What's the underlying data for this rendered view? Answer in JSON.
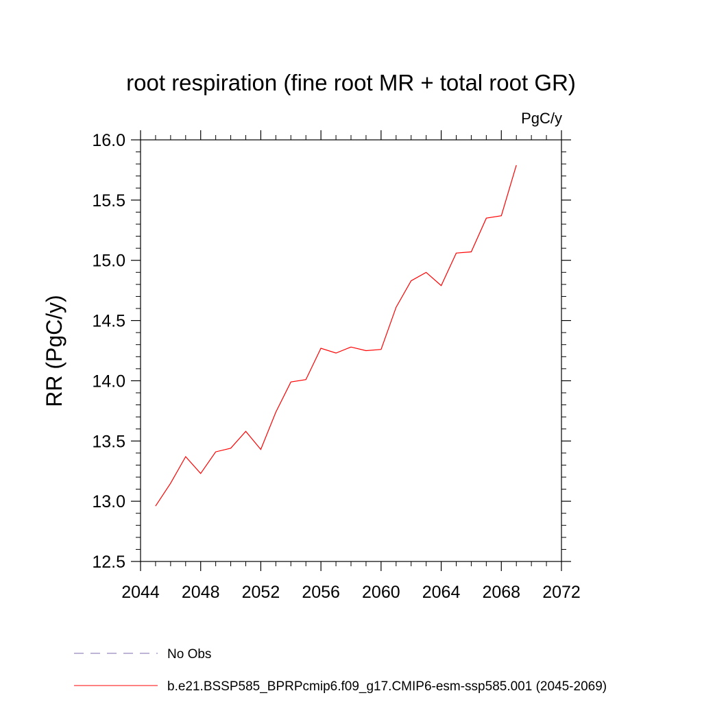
{
  "chart_data": {
    "type": "line",
    "title": "root respiration (fine root MR + total root GR)",
    "units_label": "PgC/y",
    "ylabel": "RR  (PgC/y)",
    "xlabel": "",
    "xlim": [
      2044,
      2072
    ],
    "ylim": [
      12.5,
      16.0
    ],
    "x_ticks": [
      2044,
      2048,
      2052,
      2056,
      2060,
      2064,
      2068,
      2072
    ],
    "x_tick_labels": [
      "2044",
      "2048",
      "2052",
      "2056",
      "2060",
      "2064",
      "2068",
      "2072"
    ],
    "y_ticks": [
      12.5,
      13.0,
      13.5,
      14.0,
      14.5,
      15.0,
      15.5,
      16.0
    ],
    "y_tick_labels": [
      "12.5",
      "13.0",
      "13.5",
      "14.0",
      "14.5",
      "15.0",
      "15.5",
      "16.0"
    ],
    "grid": false,
    "legend_position": "bottom",
    "series": [
      {
        "name": "b.e21.BSSP585_BPRPcmip6.f09_g17.CMIP6-esm-ssp585.001 (2045-2069)",
        "color": "#ff0000",
        "style": "solid",
        "x": [
          2045,
          2046,
          2047,
          2048,
          2049,
          2050,
          2051,
          2052,
          2053,
          2054,
          2055,
          2056,
          2057,
          2058,
          2059,
          2060,
          2061,
          2062,
          2063,
          2064,
          2065,
          2066,
          2067,
          2068,
          2069
        ],
        "y": [
          12.96,
          13.15,
          13.37,
          13.23,
          13.41,
          13.44,
          13.58,
          13.43,
          13.74,
          13.99,
          14.01,
          14.27,
          14.23,
          14.28,
          14.25,
          14.26,
          14.61,
          14.83,
          14.9,
          14.79,
          15.06,
          15.07,
          15.35,
          15.37,
          15.79
        ]
      },
      {
        "name": "No Obs",
        "color": "#7b68ae",
        "style": "dashed",
        "x": [],
        "y": []
      }
    ]
  }
}
